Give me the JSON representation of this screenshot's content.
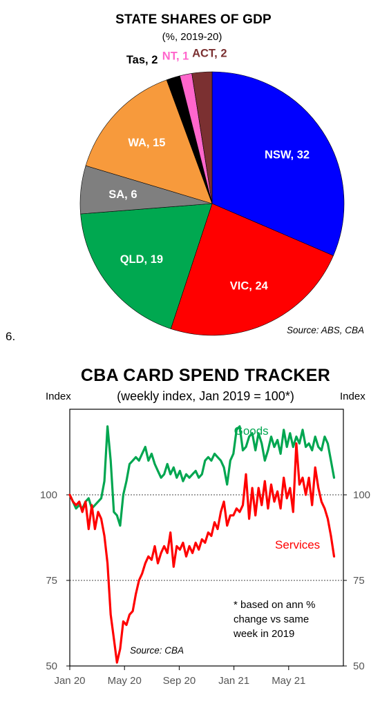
{
  "figure_number": "6.",
  "chart_data": [
    {
      "type": "pie",
      "title": "STATE SHARES OF GDP",
      "subtitle": "(%, 2019-20)",
      "source": "Source: ABS, CBA",
      "slices": [
        {
          "label": "NSW, 32",
          "name": "NSW",
          "value": 32,
          "color": "#0000ff",
          "label_color": "#ffffff"
        },
        {
          "label": "VIC, 24",
          "name": "VIC",
          "value": 24,
          "color": "#ff0000",
          "label_color": "#ffffff"
        },
        {
          "label": "QLD, 19",
          "name": "QLD",
          "value": 19,
          "color": "#00a850",
          "label_color": "#ffffff"
        },
        {
          "label": "SA, 6",
          "name": "SA",
          "value": 6,
          "color": "#7f7f7f",
          "label_color": "#ffffff"
        },
        {
          "label": "WA, 15",
          "name": "WA",
          "value": 15,
          "color": "#f79a3c",
          "label_color": "#ffffff"
        },
        {
          "label": "Tas, 2",
          "name": "Tas",
          "value": 1.7,
          "color": "#000000",
          "label_color": "#000000"
        },
        {
          "label": "NT, 1",
          "name": "NT",
          "value": 1.5,
          "color": "#ff66cc",
          "label_color": "#ff66cc"
        },
        {
          "label": "ACT, 2",
          "name": "ACT",
          "value": 2.5,
          "color": "#7b3031",
          "label_color": "#7b3031"
        }
      ]
    },
    {
      "type": "line",
      "title": "CBA CARD SPEND TRACKER",
      "subtitle": "(weekly index, Jan 2019 = 100*)",
      "ylabel_left": "Index",
      "ylabel_right": "Index",
      "ylim": [
        50,
        125
      ],
      "yticks": [
        "50",
        "75",
        "100"
      ],
      "ytick_values": [
        50,
        75,
        100
      ],
      "reference_lines": [
        100,
        75
      ],
      "xlim": [
        0,
        20
      ],
      "xticks": [
        "Jan 20",
        "May 20",
        "Sep 20",
        "Jan 21",
        "May 21"
      ],
      "xtick_values": [
        0,
        4,
        8,
        12,
        16
      ],
      "note": [
        "* based on ann %",
        "change vs same",
        "week in 2019"
      ],
      "source": "Source: CBA",
      "series": [
        {
          "name": "Goods",
          "color": "#00a650",
          "x": [
            0.0,
            0.23,
            0.46,
            0.69,
            0.92,
            1.15,
            1.38,
            1.61,
            1.84,
            2.07,
            2.3,
            2.53,
            2.76,
            2.99,
            3.22,
            3.45,
            3.68,
            3.91,
            4.14,
            4.37,
            4.6,
            4.83,
            5.06,
            5.29,
            5.52,
            5.75,
            5.98,
            6.21,
            6.44,
            6.67,
            6.9,
            7.13,
            7.36,
            7.59,
            7.82,
            8.05,
            8.28,
            8.51,
            8.74,
            8.97,
            9.2,
            9.43,
            9.66,
            9.89,
            10.12,
            10.35,
            10.58,
            10.81,
            11.04,
            11.27,
            11.5,
            11.73,
            11.96,
            12.19,
            12.42,
            12.65,
            12.88,
            13.11,
            13.34,
            13.57,
            13.8,
            14.03,
            14.26,
            14.49,
            14.72,
            14.95,
            15.18,
            15.41,
            15.64,
            15.87,
            16.1,
            16.33,
            16.56,
            16.79,
            17.02,
            17.25,
            17.48,
            17.71,
            17.94,
            18.17,
            18.4,
            18.63,
            18.86,
            19.09,
            19.32
          ],
          "y": [
            100,
            98,
            96,
            97,
            96,
            98,
            99,
            96,
            97,
            98,
            99,
            104,
            120,
            110,
            95,
            94,
            91,
            100,
            104,
            109,
            110,
            111,
            110,
            112,
            114,
            110,
            112,
            109,
            107,
            105,
            106,
            109,
            106,
            108,
            105,
            107,
            104,
            106,
            105,
            106,
            107,
            105,
            106,
            110,
            111,
            110,
            112,
            111,
            110,
            108,
            103,
            110,
            112,
            119,
            120,
            113,
            114,
            117,
            118,
            113,
            118,
            115,
            110,
            113,
            117,
            114,
            116,
            112,
            119,
            114,
            118,
            114,
            117,
            115,
            119,
            114,
            115,
            113,
            117,
            114,
            113,
            117,
            115,
            110,
            105
          ]
        },
        {
          "name": "Services",
          "color": "#ff0000",
          "x": [
            0.0,
            0.23,
            0.46,
            0.69,
            0.92,
            1.15,
            1.38,
            1.61,
            1.84,
            2.07,
            2.3,
            2.53,
            2.76,
            2.99,
            3.22,
            3.45,
            3.68,
            3.91,
            4.14,
            4.37,
            4.6,
            4.83,
            5.06,
            5.29,
            5.52,
            5.75,
            5.98,
            6.21,
            6.44,
            6.67,
            6.9,
            7.13,
            7.36,
            7.59,
            7.82,
            8.05,
            8.28,
            8.51,
            8.74,
            8.97,
            9.2,
            9.43,
            9.66,
            9.89,
            10.12,
            10.35,
            10.58,
            10.81,
            11.04,
            11.27,
            11.5,
            11.73,
            11.96,
            12.19,
            12.42,
            12.65,
            12.88,
            13.11,
            13.34,
            13.57,
            13.8,
            14.03,
            14.26,
            14.49,
            14.72,
            14.95,
            15.18,
            15.41,
            15.64,
            15.87,
            16.1,
            16.33,
            16.56,
            16.79,
            17.02,
            17.25,
            17.48,
            17.71,
            17.94,
            18.17,
            18.4,
            18.63,
            18.86,
            19.09,
            19.32
          ],
          "y": [
            100,
            98,
            97,
            98,
            95,
            98,
            90,
            97,
            90,
            95,
            93,
            88,
            80,
            65,
            58,
            51,
            55,
            63,
            62,
            65,
            66,
            71,
            75,
            77,
            80,
            82,
            81,
            85,
            80,
            83,
            85,
            83,
            89,
            79,
            85,
            84,
            86,
            82,
            85,
            83,
            86,
            84,
            87,
            86,
            89,
            88,
            92,
            90,
            95,
            98,
            91,
            94,
            94,
            96,
            95,
            97,
            106,
            93,
            102,
            94,
            102,
            97,
            104,
            96,
            103,
            98,
            101,
            96,
            105,
            99,
            102,
            95,
            115,
            103,
            105,
            100,
            105,
            97,
            108,
            102,
            98,
            96,
            93,
            88,
            82
          ]
        }
      ],
      "series_labels": [
        {
          "text": "Goods",
          "x": 12.0,
          "y": 117.5,
          "color": "#00a650"
        },
        {
          "text": "Services",
          "x": 15.0,
          "y": 84.3,
          "color": "#ff0000"
        }
      ]
    }
  ]
}
